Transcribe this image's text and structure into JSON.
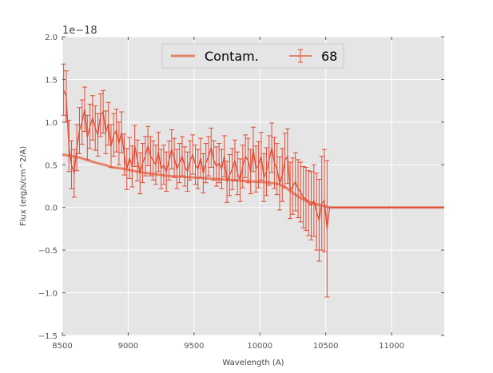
{
  "chart_data": {
    "type": "line",
    "xlabel": "Wavelength (A)",
    "ylabel": "Flux (erg/s/cm^2/A)",
    "y_offset_label": "1e−18",
    "xlim": [
      8500,
      11400
    ],
    "ylim": [
      -1.5,
      2.0
    ],
    "x_ticks": [
      8500,
      9000,
      9500,
      10000,
      10500,
      11000
    ],
    "x_tick_labels": [
      "8500",
      "9000",
      "9500",
      "10000",
      "10500",
      "11000"
    ],
    "y_ticks": [
      -1.5,
      -1.0,
      -0.5,
      0.0,
      0.5,
      1.0,
      1.5,
      2.0
    ],
    "y_tick_labels": [
      "−1.5",
      "−1.0",
      "−0.5",
      "0.0",
      "0.5",
      "1.0",
      "1.5",
      "2.0"
    ],
    "grid": true,
    "legend_position": "top-center",
    "background": "#e5e5e5",
    "series": [
      {
        "name": "Contam.",
        "color": "#e6836a",
        "style": "line",
        "x": [
          8500,
          8580,
          8640,
          8700,
          8760,
          8820,
          8880,
          8940,
          9000,
          9100,
          9200,
          9300,
          9400,
          9500,
          9600,
          9700,
          9800,
          9900,
          10000,
          10080,
          10150,
          10200,
          10250,
          10300,
          10350,
          10400,
          10450,
          10500,
          10530,
          10600,
          10800,
          11000,
          11200,
          11400
        ],
        "y": [
          0.62,
          0.6,
          0.58,
          0.55,
          0.52,
          0.5,
          0.47,
          0.46,
          0.44,
          0.41,
          0.39,
          0.37,
          0.36,
          0.35,
          0.34,
          0.33,
          0.32,
          0.31,
          0.3,
          0.29,
          0.27,
          0.23,
          0.17,
          0.12,
          0.08,
          0.05,
          0.03,
          0.01,
          0.0,
          0.0,
          0.0,
          0.0,
          0.0,
          0.0
        ]
      },
      {
        "name": "68",
        "color": "#e24a33",
        "style": "errorbar",
        "x": [
          8510,
          8530,
          8550,
          8570,
          8590,
          8610,
          8630,
          8650,
          8670,
          8690,
          8710,
          8730,
          8750,
          8770,
          8790,
          8810,
          8830,
          8850,
          8870,
          8890,
          8910,
          8930,
          8950,
          8970,
          8990,
          9010,
          9030,
          9050,
          9070,
          9090,
          9110,
          9130,
          9150,
          9170,
          9190,
          9210,
          9230,
          9250,
          9270,
          9290,
          9310,
          9330,
          9350,
          9370,
          9390,
          9410,
          9430,
          9450,
          9470,
          9490,
          9510,
          9530,
          9550,
          9570,
          9590,
          9610,
          9630,
          9650,
          9670,
          9690,
          9710,
          9730,
          9750,
          9770,
          9790,
          9810,
          9830,
          9850,
          9870,
          9890,
          9910,
          9930,
          9950,
          9970,
          9990,
          10010,
          10030,
          10050,
          10070,
          10090,
          10110,
          10130,
          10150,
          10170,
          10190,
          10210,
          10230,
          10250,
          10270,
          10290,
          10310,
          10330,
          10350,
          10370,
          10390,
          10410,
          10430,
          10450,
          10470,
          10490,
          10510
        ],
        "y": [
          1.38,
          1.3,
          0.72,
          0.5,
          0.4,
          0.7,
          0.9,
          1.0,
          1.15,
          0.82,
          0.95,
          1.05,
          0.93,
          0.85,
          1.08,
          1.12,
          0.88,
          0.98,
          0.72,
          0.85,
          0.9,
          0.75,
          0.88,
          0.62,
          0.45,
          0.58,
          0.48,
          0.72,
          0.55,
          0.4,
          0.52,
          0.6,
          0.72,
          0.6,
          0.55,
          0.5,
          0.65,
          0.45,
          0.5,
          0.42,
          0.55,
          0.68,
          0.58,
          0.45,
          0.52,
          0.6,
          0.48,
          0.42,
          0.55,
          0.62,
          0.5,
          0.45,
          0.58,
          0.4,
          0.52,
          0.6,
          0.7,
          0.55,
          0.48,
          0.52,
          0.45,
          0.6,
          0.3,
          0.38,
          0.45,
          0.55,
          0.4,
          0.32,
          0.48,
          0.6,
          0.55,
          0.42,
          0.68,
          0.45,
          0.5,
          0.6,
          0.35,
          0.42,
          0.55,
          0.7,
          0.52,
          0.45,
          0.28,
          0.38,
          0.55,
          0.6,
          0.2,
          0.25,
          0.3,
          0.22,
          0.18,
          0.12,
          0.1,
          0.05,
          0.02,
          0.08,
          -0.05,
          -0.15,
          0.05,
          0.08,
          -0.25
        ],
        "err": [
          0.3,
          0.3,
          0.3,
          0.28,
          0.28,
          0.27,
          0.27,
          0.26,
          0.26,
          0.26,
          0.26,
          0.26,
          0.26,
          0.25,
          0.25,
          0.25,
          0.25,
          0.25,
          0.25,
          0.25,
          0.25,
          0.25,
          0.24,
          0.24,
          0.24,
          0.24,
          0.24,
          0.24,
          0.24,
          0.24,
          0.23,
          0.23,
          0.23,
          0.23,
          0.23,
          0.23,
          0.23,
          0.23,
          0.23,
          0.23,
          0.23,
          0.23,
          0.23,
          0.23,
          0.23,
          0.23,
          0.23,
          0.23,
          0.23,
          0.23,
          0.23,
          0.23,
          0.23,
          0.23,
          0.23,
          0.23,
          0.23,
          0.23,
          0.23,
          0.23,
          0.23,
          0.24,
          0.24,
          0.24,
          0.24,
          0.24,
          0.25,
          0.25,
          0.25,
          0.25,
          0.26,
          0.26,
          0.26,
          0.27,
          0.27,
          0.28,
          0.28,
          0.28,
          0.29,
          0.29,
          0.3,
          0.3,
          0.31,
          0.31,
          0.32,
          0.32,
          0.33,
          0.33,
          0.34,
          0.34,
          0.35,
          0.36,
          0.37,
          0.38,
          0.4,
          0.42,
          0.45,
          0.48,
          0.55,
          0.6,
          0.8
        ]
      }
    ]
  }
}
